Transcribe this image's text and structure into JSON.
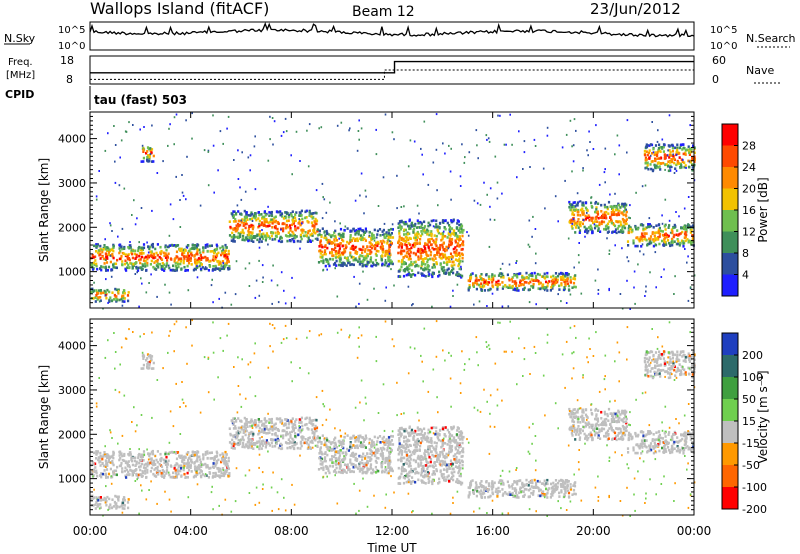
{
  "header": {
    "station": "Wallops Island (fitACF)",
    "beam": "Beam 12",
    "date": "23/Jun/2012"
  },
  "noise_panel": {
    "left_label": "N.Sky",
    "right_label": "N.Search",
    "left_ticks": [
      "10^5",
      "10^0"
    ],
    "right_ticks": [
      "10^5",
      "10^0"
    ]
  },
  "freq_panel": {
    "left_label_1": "Freq.",
    "left_label_2": "[MHz]",
    "left_ticks": [
      "18",
      "8"
    ],
    "right_label": "Nave",
    "right_ticks": [
      "60",
      "0"
    ]
  },
  "cpid_panel": {
    "left_label": "CPID",
    "program": "tau (fast) 503"
  },
  "colors": {
    "frame": "#000000",
    "echo_gray": "#bfbfbf",
    "power_scale": [
      "#1f1fff",
      "#2d4f9e",
      "#3f8f5a",
      "#6fbf4f",
      "#f2c200",
      "#ff8a00",
      "#ff4a00",
      "#ff0000"
    ],
    "velocity_scale": [
      "#1f3fbf",
      "#2d6a6a",
      "#3f9f3f",
      "#6fd04f",
      "#bfbfbf",
      "#ff9900",
      "#ff6600",
      "#ff0000"
    ]
  },
  "chart_data": [
    {
      "type": "heatmap",
      "name": "power",
      "ylabel": "Slant Range [km]",
      "yticks": [
        1000,
        2000,
        3000,
        4000
      ],
      "ylim": [
        180,
        4600
      ],
      "xlim_hours": [
        0,
        24
      ],
      "colorbar": {
        "label": "Power [dB]",
        "ticks": [
          "4",
          "8",
          "12",
          "16",
          "20",
          "24",
          "28"
        ]
      },
      "echo_bands": [
        {
          "t0": 0.0,
          "t1": 5.5,
          "r0": 1050,
          "r1": 1650
        },
        {
          "t0": 5.5,
          "t1": 9.0,
          "r0": 1700,
          "r1": 2400
        },
        {
          "t0": 9.0,
          "t1": 12.0,
          "r0": 1150,
          "r1": 2000
        },
        {
          "t0": 12.2,
          "t1": 14.8,
          "r0": 900,
          "r1": 2200
        },
        {
          "t0": 15.0,
          "t1": 19.3,
          "r0": 600,
          "r1": 1000
        },
        {
          "t0": 19.0,
          "t1": 21.3,
          "r0": 1900,
          "r1": 2600
        },
        {
          "t0": 21.3,
          "t1": 24.0,
          "r0": 1600,
          "r1": 2100
        },
        {
          "t0": 0.0,
          "t1": 1.5,
          "r0": 350,
          "r1": 650
        },
        {
          "t0": 2.0,
          "t1": 2.5,
          "r0": 3500,
          "r1": 3900
        },
        {
          "t0": 22.0,
          "t1": 24.0,
          "r0": 3300,
          "r1": 3900
        }
      ]
    },
    {
      "type": "heatmap",
      "name": "velocity",
      "ylabel": "Slant Range [km]",
      "xlabel": "Time UT",
      "xticks": [
        "00:00",
        "04:00",
        "08:00",
        "12:00",
        "16:00",
        "20:00",
        "00:00"
      ],
      "yticks": [
        1000,
        2000,
        3000,
        4000
      ],
      "ylim": [
        180,
        4600
      ],
      "colorbar": {
        "label": "Velocity [m s⁻¹]",
        "ticks": [
          "200",
          "100",
          "50",
          "15",
          "-15",
          "-50",
          "-100",
          "-200"
        ]
      }
    }
  ],
  "freq_series_hours": {
    "switch_at": 12.1,
    "freq_before": 12,
    "freq_after": 16,
    "nave_before": 10,
    "nave_after": 30
  }
}
